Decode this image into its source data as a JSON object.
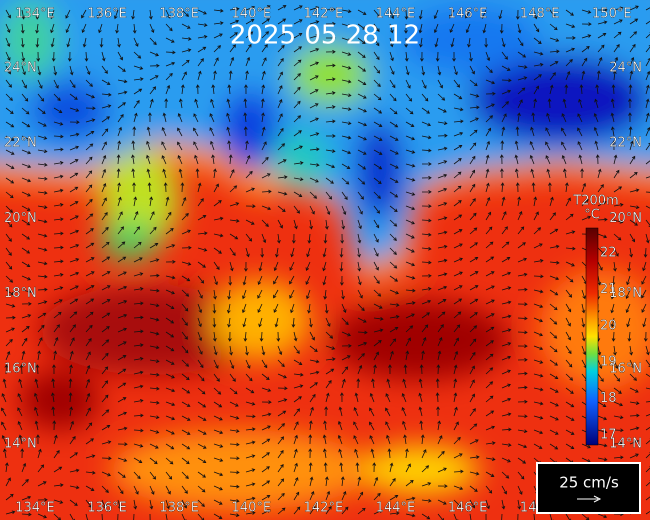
{
  "title": "2025 05 28 12",
  "lon_labels": [
    "134°E",
    "136°E",
    "138°E",
    "140°E",
    "142°E",
    "144°E",
    "146°E",
    "148°E",
    "150°E"
  ],
  "lat_labels": [
    "24°N",
    "22°N",
    "20°N",
    "18°N",
    "16°N",
    "14°N"
  ],
  "colorbar": {
    "title": "T200m",
    "unit": "°C",
    "ticks": [
      "17",
      "18",
      "19",
      "20",
      "21",
      "22"
    ]
  },
  "scale": {
    "label": "25 cm/s"
  }
}
